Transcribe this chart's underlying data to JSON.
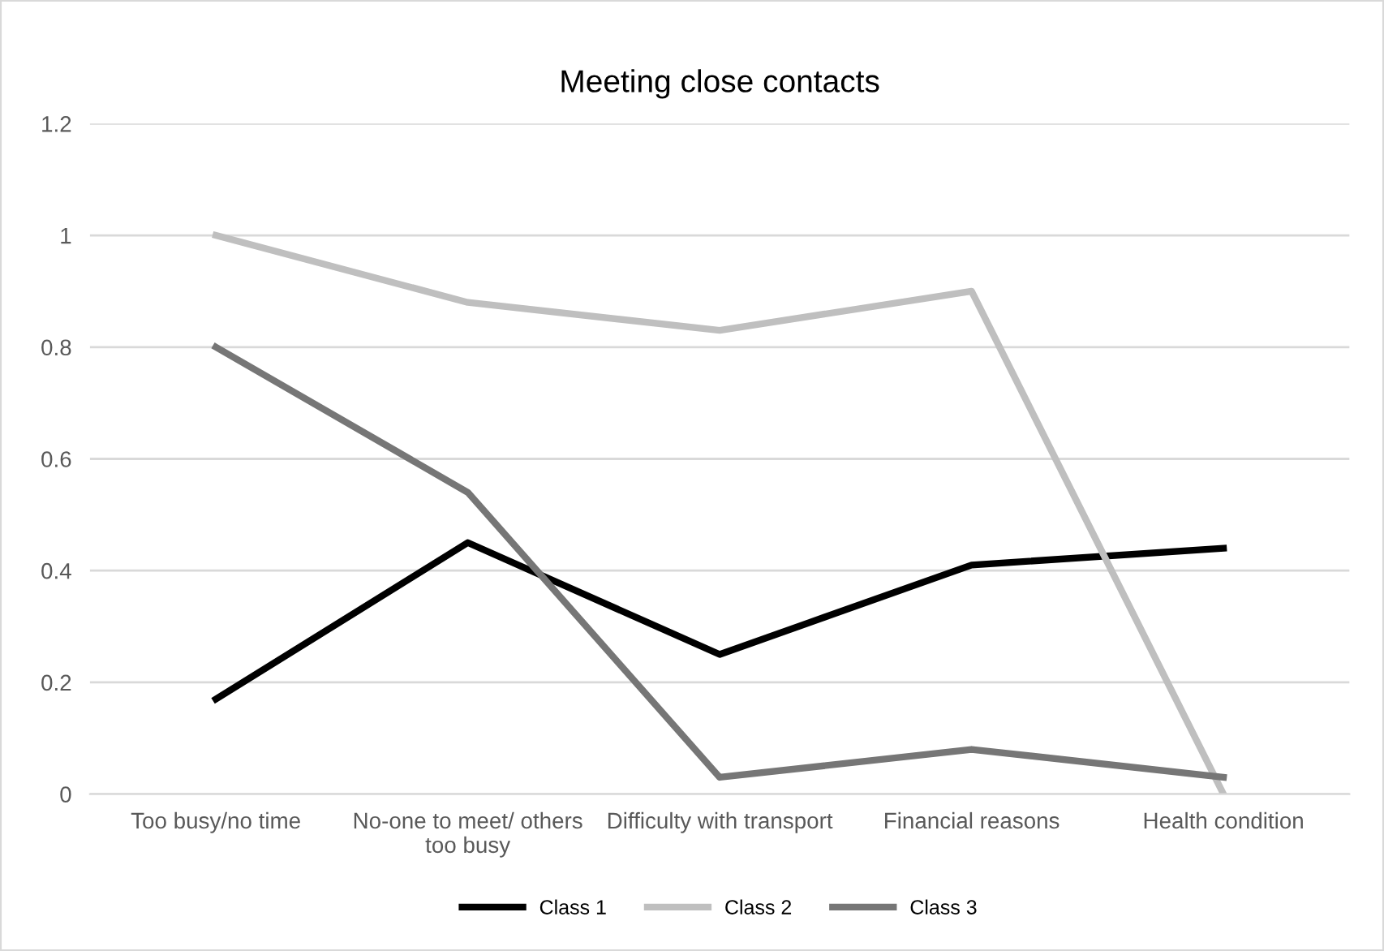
{
  "chart_data": {
    "type": "line",
    "title": "Meeting close contacts",
    "categories": [
      "Too busy/no time",
      "No-one to meet/ others too busy",
      "Difficulty with transport",
      "Financial reasons",
      "Health condition"
    ],
    "series": [
      {
        "name": "Class 1",
        "color": "#000000",
        "values": [
          0.17,
          0.45,
          0.25,
          0.41,
          0.44
        ]
      },
      {
        "name": "Class 2",
        "color": "#bfbfbf",
        "values": [
          1.0,
          0.88,
          0.83,
          0.9,
          0.0
        ]
      },
      {
        "name": "Class 3",
        "color": "#767676",
        "values": [
          0.8,
          0.54,
          0.03,
          0.08,
          0.03
        ]
      }
    ],
    "ylim": [
      0,
      1.2
    ],
    "yticks": [
      0,
      0.2,
      0.4,
      0.6,
      0.8,
      1,
      1.2
    ],
    "grid": "y",
    "legend": "bottom",
    "marker": "none",
    "line_style": "solid"
  }
}
